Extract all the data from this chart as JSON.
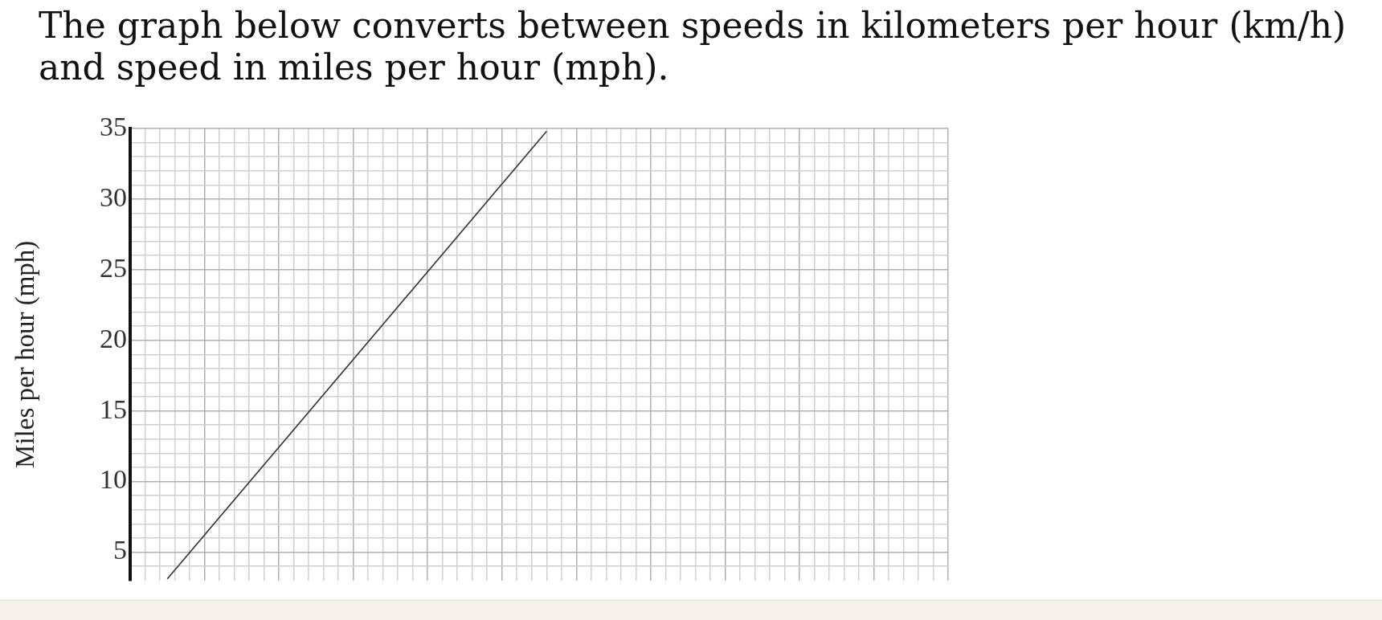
{
  "chart_data": {
    "type": "line",
    "title": "The graph below converts between speeds in kilometers per hour (km/h) and speed in miles per hour (mph).",
    "ylabel": "Miles per hour (mph)",
    "categories": [
      null,
      null,
      null,
      null,
      null,
      null,
      null,
      null,
      null,
      null,
      null,
      null,
      null,
      null,
      null,
      null,
      null,
      null,
      null,
      null,
      null,
      null,
      null,
      null,
      null,
      null,
      null,
      null,
      null,
      null,
      null,
      null,
      null,
      null,
      null,
      null,
      null,
      null,
      null,
      null,
      null,
      null,
      null,
      null,
      null,
      null,
      null,
      null,
      null,
      null,
      null,
      null,
      null,
      null,
      null,
      null,
      null,
      null,
      null,
      null,
      null,
      null,
      null,
      null,
      null,
      null,
      null,
      null,
      null,
      null,
      null,
      null,
      null,
      null,
      null,
      null,
      null,
      null,
      null,
      null,
      null,
      null,
      null,
      null,
      null,
      null,
      null,
      null,
      null,
      null,
      null,
      null,
      null,
      null,
      null,
      null,
      null,
      null,
      null,
      null,
      null,
      null,
      null,
      null,
      null,
      null,
      null,
      null,
      null,
      null,
      null
    ],
    "values": [
      null,
      null,
      null,
      null,
      null,
      3.1,
      null,
      null,
      null,
      null,
      null,
      null,
      null,
      null,
      null,
      null,
      null,
      null,
      null,
      null,
      null,
      null,
      null,
      null,
      null,
      null,
      null,
      null,
      null,
      null,
      null,
      null,
      null,
      null,
      null,
      null,
      null,
      null,
      null,
      null,
      null,
      null,
      null,
      null,
      null,
      null,
      null,
      null,
      null,
      null,
      null,
      null,
      null,
      null,
      null,
      null,
      34.8,
      null,
      null,
      null,
      null,
      null,
      null,
      null,
      null,
      null,
      null,
      null,
      null,
      null,
      null,
      null,
      null,
      null,
      null,
      null,
      null,
      null,
      null,
      null,
      null,
      null,
      null,
      null,
      null,
      null,
      null,
      null,
      null,
      null,
      null,
      null,
      null,
      null,
      null,
      null,
      null,
      null,
      null,
      null,
      null,
      null,
      null,
      null,
      null,
      null,
      null,
      null,
      null,
      null,
      null
    ],
    "color": "#333333",
    "line_style": "solid",
    "marker": "none",
    "ylim": [
      3,
      35
    ],
    "yticks": [
      {
        "value": 4,
        "label": null
      },
      5,
      {
        "value": 6,
        "label": null
      },
      {
        "value": 7,
        "label": null
      },
      {
        "value": 8,
        "label": null
      },
      {
        "value": 9,
        "label": null
      },
      10,
      {
        "value": 11,
        "label": null
      },
      {
        "value": 12,
        "label": null
      },
      {
        "value": 13,
        "label": null
      },
      {
        "value": 14,
        "label": null
      },
      15,
      {
        "value": 16,
        "label": null
      },
      {
        "value": 17,
        "label": null
      },
      {
        "value": 18,
        "label": null
      },
      {
        "value": 19,
        "label": null
      },
      20,
      {
        "value": 21,
        "label": null
      },
      {
        "value": 22,
        "label": null
      },
      {
        "value": 23,
        "label": null
      },
      {
        "value": 24,
        "label": null
      },
      25,
      {
        "value": 26,
        "label": null
      },
      {
        "value": 27,
        "label": null
      },
      {
        "value": 28,
        "label": null
      },
      {
        "value": 29,
        "label": null
      },
      30,
      {
        "value": 31,
        "label": null
      },
      {
        "value": 32,
        "label": null
      },
      {
        "value": 33,
        "label": null
      },
      {
        "value": 34,
        "label": null
      },
      35
    ],
    "grid": true,
    "tick_labels": "y"
  }
}
